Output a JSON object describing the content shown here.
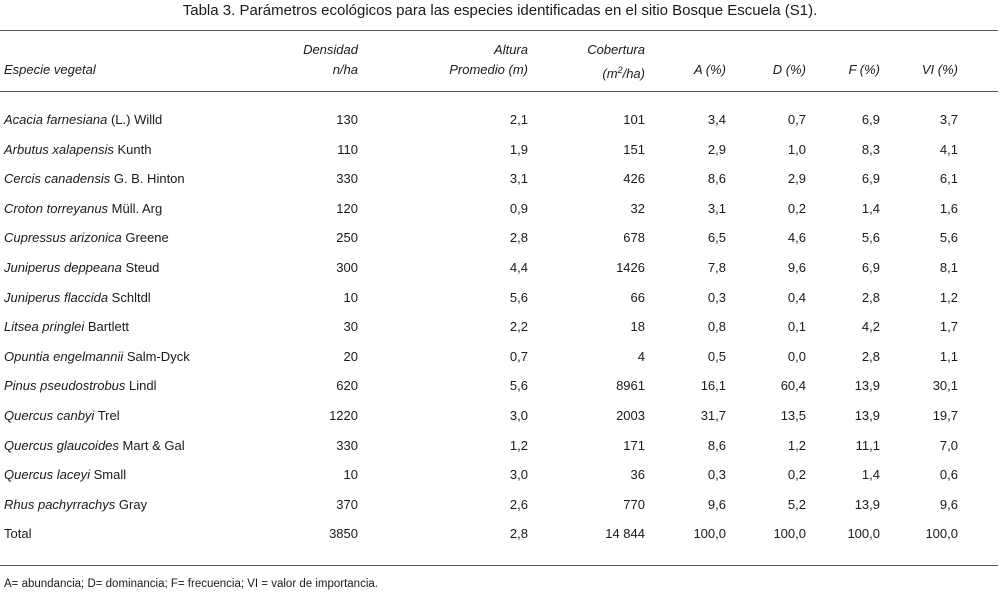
{
  "caption": "Tabla 3. Parámetros ecológicos para las especies identificadas en el sitio Bosque Escuela (S1).",
  "headers": {
    "species": "Especie vegetal",
    "density_line1": "Densidad",
    "density_line2": "n/ha",
    "height_line1": "Altura",
    "height_line2": "Promedio (m)",
    "cover_line1": "Cobertura",
    "cover_line2_pre": "(m",
    "cover_line2_sup": "2",
    "cover_line2_post": "/ha)",
    "a": "A (%)",
    "d": "D (%)",
    "f": "F (%)",
    "vi": "VI (%)"
  },
  "rows": [
    {
      "name": "Acacia farnesiana",
      "author": " (L.) Willd",
      "density": "130",
      "height": "2,1",
      "cover": "101",
      "a": "3,4",
      "d": "0,7",
      "f": "6,9",
      "vi": "3,7"
    },
    {
      "name": "Arbutus xalapensis",
      "author": " Kunth",
      "density": "110",
      "height": "1,9",
      "cover": "151",
      "a": "2,9",
      "d": "1,0",
      "f": "8,3",
      "vi": "4,1"
    },
    {
      "name": "Cercis canadensis",
      "author": " G. B. Hinton",
      "density": "330",
      "height": "3,1",
      "cover": "426",
      "a": "8,6",
      "d": "2,9",
      "f": "6,9",
      "vi": "6,1"
    },
    {
      "name": "Croton torreyanus",
      "author": " Müll. Arg",
      "density": "120",
      "height": "0,9",
      "cover": "32",
      "a": "3,1",
      "d": "0,2",
      "f": "1,4",
      "vi": "1,6"
    },
    {
      "name": "Cupressus arizonica",
      "author": " Greene",
      "density": "250",
      "height": "2,8",
      "cover": "678",
      "a": "6,5",
      "d": "4,6",
      "f": "5,6",
      "vi": "5,6"
    },
    {
      "name": "Juniperus deppeana",
      "author": " Steud",
      "density": "300",
      "height": "4,4",
      "cover": "1426",
      "a": "7,8",
      "d": "9,6",
      "f": "6,9",
      "vi": "8,1"
    },
    {
      "name": "Juniperus flaccida",
      "author": " Schltdl",
      "density": "10",
      "height": "5,6",
      "cover": "66",
      "a": "0,3",
      "d": "0,4",
      "f": "2,8",
      "vi": "1,2"
    },
    {
      "name": "Litsea pringlei",
      "author": " Bartlett",
      "density": "30",
      "height": "2,2",
      "cover": "18",
      "a": "0,8",
      "d": "0,1",
      "f": "4,2",
      "vi": "1,7"
    },
    {
      "name": "Opuntia engelmannii",
      "author": " Salm-Dyck",
      "density": "20",
      "height": "0,7",
      "cover": "4",
      "a": "0,5",
      "d": "0,0",
      "f": "2,8",
      "vi": "1,1"
    },
    {
      "name": "Pinus pseudostrobus",
      "author": " Lindl",
      "density": "620",
      "height": "5,6",
      "cover": "8961",
      "a": "16,1",
      "d": "60,4",
      "f": "13,9",
      "vi": "30,1"
    },
    {
      "name": "Quercus canbyi",
      "author": " Trel",
      "density": "1220",
      "height": "3,0",
      "cover": "2003",
      "a": "31,7",
      "d": "13,5",
      "f": "13,9",
      "vi": "19,7"
    },
    {
      "name": "Quercus glaucoides",
      "author": " Mart & Gal",
      "density": "330",
      "height": "1,2",
      "cover": "171",
      "a": "8,6",
      "d": "1,2",
      "f": "11,1",
      "vi": "7,0"
    },
    {
      "name": "Quercus laceyi",
      "author": " Small",
      "density": "10",
      "height": "3,0",
      "cover": "36",
      "a": "0,3",
      "d": "0,2",
      "f": "1,4",
      "vi": "0,6"
    },
    {
      "name": "Rhus pachyrrachys",
      "author": " Gray",
      "density": "370",
      "height": "2,6",
      "cover": "770",
      "a": "9,6",
      "d": "5,2",
      "f": "13,9",
      "vi": "9,6"
    }
  ],
  "total": {
    "label": "Total",
    "density": "3850",
    "height": "2,8",
    "cover": "14 844",
    "a": "100,0",
    "d": "100,0",
    "f": "100,0",
    "vi": "100,0"
  },
  "footnote": "A= abundancia; D= dominancia; F= frecuencia; VI = valor de importancia."
}
